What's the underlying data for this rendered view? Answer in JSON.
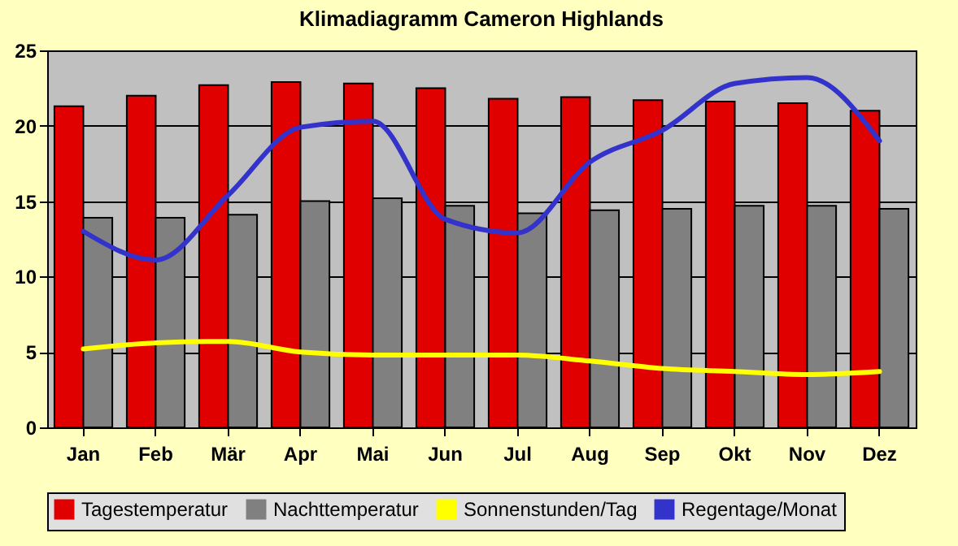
{
  "chart_data": {
    "type": "bar",
    "title": "Klimadiagramm Cameron Highlands",
    "categories": [
      "Jan",
      "Feb",
      "Mär",
      "Apr",
      "Mai",
      "Jun",
      "Jul",
      "Aug",
      "Sep",
      "Okt",
      "Nov",
      "Dez"
    ],
    "series": [
      {
        "name": "Tagestemperatur",
        "color": "#e00000",
        "values": [
          21.3,
          22.0,
          22.7,
          22.9,
          22.8,
          22.5,
          21.8,
          21.9,
          21.7,
          21.6,
          21.5,
          21.0
        ]
      },
      {
        "name": "Nachttemperatur",
        "color": "#808080",
        "values": [
          13.9,
          13.9,
          14.1,
          15.0,
          15.2,
          14.7,
          14.2,
          14.4,
          14.5,
          14.7,
          14.7,
          14.5
        ]
      },
      {
        "name": "Sonnenstunden/Tag",
        "type": "line",
        "color": "#ffff00",
        "values": [
          5.2,
          5.6,
          5.7,
          5.0,
          4.8,
          4.8,
          4.8,
          4.4,
          3.9,
          3.7,
          3.5,
          3.7
        ]
      },
      {
        "name": "Regentage/Monat",
        "type": "line",
        "color": "#3333cc",
        "values": [
          13.0,
          11.1,
          15.4,
          19.9,
          20.3,
          13.8,
          12.9,
          17.6,
          19.7,
          22.8,
          23.2,
          19.0
        ]
      }
    ],
    "ylim": [
      0,
      25
    ],
    "yticks": [
      0,
      5,
      10,
      15,
      20,
      25
    ],
    "grid": "y",
    "legend": "bottom"
  }
}
